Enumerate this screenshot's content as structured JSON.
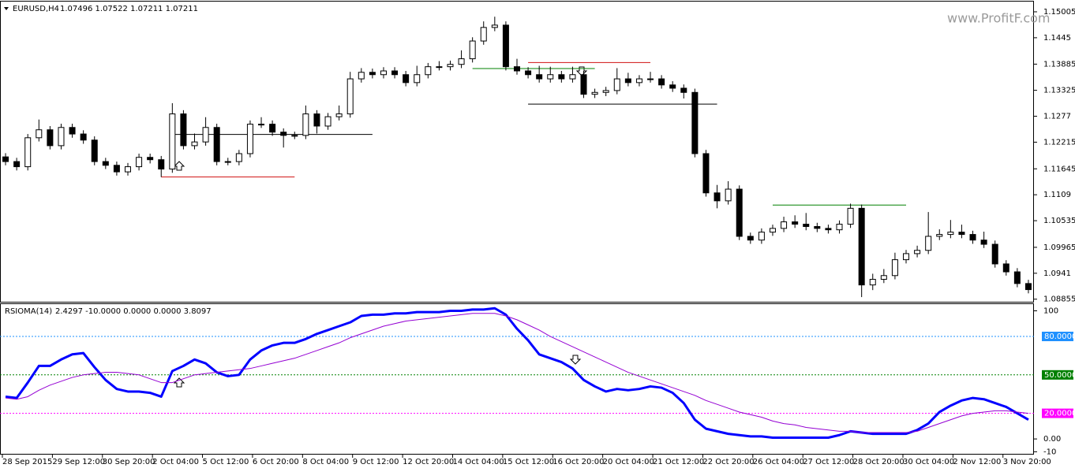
{
  "chart_data": [
    {
      "type": "candlestick",
      "title": "EURUSD,H4",
      "subtitle": "1.07496 1.07522 1.07211 1.07211",
      "watermark": "www.ProfitF.com",
      "up_color": "#ffffff",
      "down_color": "#000000",
      "open": [
        1.119,
        1.118,
        1.1169,
        1.1231,
        1.1248,
        1.1214,
        1.1253,
        1.1239,
        1.1226,
        1.118,
        1.1172,
        1.1158,
        1.1169,
        1.1189,
        1.1184,
        1.1164,
        1.1282,
        1.1214,
        1.1222,
        1.1253,
        1.118,
        1.118,
        1.1197,
        1.126,
        1.126,
        1.1243,
        1.1236,
        1.1236,
        1.1282,
        1.1256,
        1.1276,
        1.1282,
        1.1357,
        1.1371,
        1.1366,
        1.1374,
        1.1366,
        1.1349,
        1.1366,
        1.1383,
        1.1383,
        1.1388,
        1.14,
        1.1438,
        1.1467,
        1.1472,
        1.1383,
        1.1374,
        1.1366,
        1.1357,
        1.1366,
        1.1357,
        1.1366,
        1.1324,
        1.1328,
        1.1332,
        1.1357,
        1.1349,
        1.1357,
        1.1357,
        1.1344,
        1.1337,
        1.1328,
        1.1197,
        1.1113,
        1.1096,
        1.1121,
        1.102,
        1.1012,
        1.1029,
        1.1037,
        1.1051,
        1.1046,
        1.1041,
        1.1037,
        1.1034,
        1.1046,
        1.108,
        1.0916,
        1.0928,
        1.0936,
        1.097,
        1.0983,
        1.099,
        1.102,
        1.1024,
        1.1029,
        1.1024,
        1.1012,
        1.1003,
        1.0961,
        1.0944,
        1.0919
      ],
      "high": [
        1.1198,
        1.1188,
        1.1239,
        1.127,
        1.1256,
        1.1261,
        1.1261,
        1.1247,
        1.1234,
        1.1188,
        1.118,
        1.1177,
        1.1197,
        1.1197,
        1.1192,
        1.1305,
        1.129,
        1.124,
        1.1275,
        1.1261,
        1.1188,
        1.1205,
        1.1268,
        1.1275,
        1.1268,
        1.1251,
        1.1244,
        1.13,
        1.129,
        1.1284,
        1.13,
        1.1372,
        1.138,
        1.1379,
        1.1382,
        1.1382,
        1.1374,
        1.1385,
        1.1391,
        1.1395,
        1.1396,
        1.1418,
        1.1446,
        1.148,
        1.149,
        1.148,
        1.14,
        1.1382,
        1.1385,
        1.1383,
        1.1374,
        1.1383,
        1.1374,
        1.1336,
        1.134,
        1.138,
        1.137,
        1.1365,
        1.1372,
        1.1365,
        1.1352,
        1.1345,
        1.1336,
        1.1205,
        1.113,
        1.1138,
        1.1129,
        1.1028,
        1.1037,
        1.1045,
        1.1062,
        1.1065,
        1.107,
        1.1049,
        1.1045,
        1.1054,
        1.109,
        1.1088,
        1.094,
        1.095,
        1.0985,
        1.0991,
        1.1,
        1.1072,
        1.1035,
        1.1055,
        1.1045,
        1.1032,
        1.103,
        1.1011,
        1.0969,
        1.0952,
        1.0927
      ],
      "low": [
        1.1172,
        1.1161,
        1.1161,
        1.1223,
        1.1206,
        1.1206,
        1.1231,
        1.1218,
        1.1172,
        1.1164,
        1.115,
        1.115,
        1.1161,
        1.1176,
        1.1147,
        1.1156,
        1.1206,
        1.1206,
        1.1214,
        1.1172,
        1.1172,
        1.1172,
        1.1189,
        1.1252,
        1.1235,
        1.121,
        1.1228,
        1.1228,
        1.124,
        1.1248,
        1.1268,
        1.1274,
        1.1349,
        1.1358,
        1.1358,
        1.1358,
        1.1341,
        1.1341,
        1.1358,
        1.1375,
        1.1375,
        1.138,
        1.1392,
        1.143,
        1.1459,
        1.1375,
        1.1366,
        1.1358,
        1.1349,
        1.1349,
        1.1349,
        1.1349,
        1.1316,
        1.1316,
        1.132,
        1.1324,
        1.1341,
        1.1341,
        1.1349,
        1.1336,
        1.1329,
        1.1315,
        1.1189,
        1.1105,
        1.108,
        1.1088,
        1.1012,
        1.1004,
        1.1004,
        1.1021,
        1.1029,
        1.1038,
        1.1033,
        1.1029,
        1.1026,
        1.1026,
        1.1038,
        1.089,
        1.0905,
        1.092,
        1.0928,
        1.0962,
        1.0975,
        1.0982,
        1.1012,
        1.1016,
        1.1016,
        1.1004,
        1.0995,
        1.0953,
        1.0936,
        1.0911,
        1.0898
      ],
      "close": [
        1.118,
        1.1169,
        1.1231,
        1.1248,
        1.1214,
        1.1253,
        1.1239,
        1.1226,
        1.118,
        1.1172,
        1.1158,
        1.1169,
        1.1189,
        1.1184,
        1.1164,
        1.1282,
        1.1214,
        1.1222,
        1.1253,
        1.118,
        1.118,
        1.1197,
        1.126,
        1.126,
        1.1243,
        1.1236,
        1.1236,
        1.1282,
        1.1256,
        1.1276,
        1.1282,
        1.1357,
        1.1371,
        1.1366,
        1.1374,
        1.1366,
        1.1349,
        1.1366,
        1.1383,
        1.1383,
        1.1388,
        1.14,
        1.1438,
        1.1467,
        1.1472,
        1.1383,
        1.1374,
        1.1366,
        1.1357,
        1.1366,
        1.1357,
        1.1366,
        1.1324,
        1.1328,
        1.1332,
        1.1357,
        1.1349,
        1.1357,
        1.1357,
        1.1344,
        1.1337,
        1.1328,
        1.1197,
        1.1113,
        1.1096,
        1.1121,
        1.102,
        1.1012,
        1.1029,
        1.1037,
        1.1051,
        1.1046,
        1.1041,
        1.1037,
        1.1034,
        1.1046,
        1.108,
        1.0916,
        1.0928,
        1.0936,
        1.097,
        1.0983,
        1.099,
        1.102,
        1.1024,
        1.1029,
        1.1024,
        1.1012,
        1.1003,
        1.0961,
        1.0944,
        1.0919,
        1.0906
      ],
      "ylim": [
        1.088,
        1.1519
      ],
      "yticks": [
        1.15005,
        1.1445,
        1.13885,
        1.13325,
        1.1277,
        1.12215,
        1.11645,
        1.1109,
        1.10535,
        1.09965,
        1.0941,
        1.08855
      ],
      "levels": [
        {
          "value": 1.1238,
          "color": "#000000",
          "from": 15,
          "to": 33
        },
        {
          "value": 1.1147,
          "color": "#d01010",
          "from": 14,
          "to": 26
        },
        {
          "value": 1.1379,
          "color": "#008000",
          "from": 42,
          "to": 53
        },
        {
          "value": 1.1392,
          "color": "#d01010",
          "from": 47,
          "to": 58
        },
        {
          "value": 1.1303,
          "color": "#000000",
          "from": 47,
          "to": 64
        },
        {
          "value": 1.1087,
          "color": "#008000",
          "from": 69,
          "to": 81
        }
      ]
    },
    {
      "type": "line",
      "title": "RSIOMA(14)",
      "subtitle": "2.4297 -10.0000 0.0000 0.0000 3.8097",
      "series": [
        {
          "color": "#0000ff",
          "width": 3,
          "values": [
            33,
            32,
            44,
            57,
            57,
            62,
            66,
            67,
            56,
            46,
            39,
            37,
            37,
            36,
            33,
            53,
            57,
            62,
            59,
            52,
            49,
            50,
            62,
            69,
            73,
            75,
            75,
            78,
            82,
            85,
            88,
            91,
            96,
            97,
            97,
            98,
            98,
            99,
            99,
            99,
            100,
            100,
            101,
            101,
            102,
            97,
            86,
            77,
            66,
            63,
            60,
            55,
            46,
            41,
            37,
            39,
            38,
            39,
            41,
            40,
            36,
            28,
            15,
            8,
            6,
            4,
            3,
            2,
            2,
            1,
            1,
            1,
            1,
            1,
            1,
            3,
            6,
            5,
            4,
            4,
            4,
            4,
            7,
            12,
            21,
            26,
            30,
            32,
            31,
            28,
            25,
            20,
            15
          ]
        },
        {
          "color": "#9400d3",
          "width": 1,
          "values": [
            32,
            31,
            33,
            38,
            42,
            45,
            48,
            50,
            51,
            52,
            52,
            51,
            50,
            47,
            44,
            44,
            47,
            50,
            51,
            52,
            53,
            54,
            55,
            57,
            59,
            61,
            63,
            66,
            69,
            72,
            75,
            79,
            82,
            85,
            88,
            90,
            92,
            93,
            94,
            95,
            96,
            97,
            98,
            98,
            98,
            96,
            93,
            89,
            85,
            80,
            76,
            72,
            68,
            64,
            60,
            56,
            52,
            49,
            46,
            43,
            40,
            37,
            34,
            30,
            27,
            24,
            21,
            19,
            17,
            14,
            12,
            11,
            9,
            8,
            7,
            6,
            6,
            5,
            5,
            5,
            5,
            5,
            6,
            9,
            12,
            15,
            18,
            20,
            21,
            22,
            22,
            21,
            20
          ]
        }
      ],
      "ylim": [
        -11,
        104
      ],
      "yticks": [
        100,
        {
          "value": 0,
          "label": "0.00"
        },
        -10
      ],
      "levels": [
        {
          "value": 80,
          "label": "80.0000",
          "color": "#1e90ff"
        },
        {
          "value": 50,
          "label": "50.0000",
          "color": "#008000"
        },
        {
          "value": 20,
          "label": "20.0000",
          "color": "#ff00ff"
        }
      ],
      "xticks": [
        {
          "value": 0,
          "label": "28 Sep 2015"
        },
        {
          "value": 4.5,
          "label": "29 Sep 12:00"
        },
        {
          "value": 9,
          "label": "30 Sep 20:00"
        },
        {
          "value": 13.5,
          "label": "2 Oct 04:00"
        },
        {
          "value": 18,
          "label": "5 Oct 12:00"
        },
        {
          "value": 22.5,
          "label": "6 Oct 20:00"
        },
        {
          "value": 27,
          "label": "8 Oct 04:00"
        },
        {
          "value": 31.5,
          "label": "9 Oct 12:00"
        },
        {
          "value": 36,
          "label": "12 Oct 20:00"
        },
        {
          "value": 40.5,
          "label": "14 Oct 04:00"
        },
        {
          "value": 45,
          "label": "15 Oct 12:00"
        },
        {
          "value": 49.5,
          "label": "16 Oct 20:00"
        },
        {
          "value": 54,
          "label": "20 Oct 04:00"
        },
        {
          "value": 58.5,
          "label": "21 Oct 12:00"
        },
        {
          "value": 63,
          "label": "22 Oct 20:00"
        },
        {
          "value": 67.5,
          "label": "26 Oct 04:00"
        },
        {
          "value": 72,
          "label": "27 Oct 12:00"
        },
        {
          "value": 76.5,
          "label": "28 Oct 20:00"
        },
        {
          "value": 81,
          "label": "30 Oct 04:00"
        },
        {
          "value": 85.5,
          "label": "2 Nov 12:00"
        },
        {
          "value": 90,
          "label": "3 Nov 20:00"
        }
      ]
    }
  ]
}
